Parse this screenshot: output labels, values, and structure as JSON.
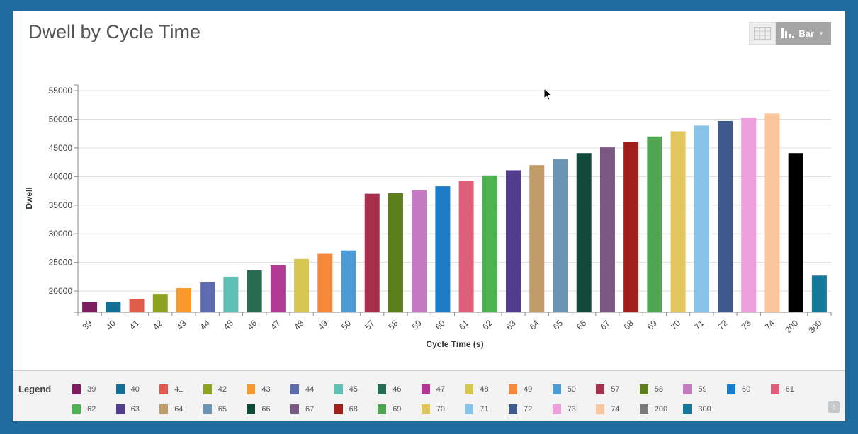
{
  "title": "Dwell by Cycle Time",
  "toolbar": {
    "view_label": "Bar"
  },
  "legend": {
    "label": "Legend"
  },
  "chart_data": {
    "type": "bar",
    "xlabel": "Cycle Time (s)",
    "ylabel": "Dwell",
    "ylim": [
      16300,
      56000
    ],
    "yticks": [
      20000,
      25000,
      30000,
      35000,
      40000,
      45000,
      50000,
      55000
    ],
    "yticks_labels": [
      "20000",
      "25000",
      "30000",
      "35000",
      "40000",
      "45000",
      "50000",
      "55000"
    ],
    "grid": true,
    "legend_position": "bottom",
    "categories": [
      "39",
      "40",
      "41",
      "42",
      "43",
      "44",
      "45",
      "46",
      "47",
      "48",
      "49",
      "50",
      "57",
      "58",
      "59",
      "60",
      "61",
      "62",
      "63",
      "64",
      "65",
      "66",
      "67",
      "68",
      "69",
      "70",
      "71",
      "72",
      "73",
      "74",
      "200",
      "300"
    ],
    "values": [
      18100,
      18100,
      18600,
      19500,
      20500,
      21500,
      22500,
      23600,
      24500,
      25600,
      26500,
      27100,
      37000,
      37100,
      37600,
      38300,
      39200,
      40200,
      41100,
      42000,
      43100,
      44100,
      45100,
      46100,
      47000,
      47900,
      48900,
      49700,
      50300,
      51000,
      44100,
      22700
    ],
    "colors": [
      "#7d1d5e",
      "#126f95",
      "#e05c4a",
      "#8da220",
      "#f79a2e",
      "#5f6bb0",
      "#5fc0b6",
      "#266b52",
      "#b23993",
      "#d5c751",
      "#f5883b",
      "#4b9bd6",
      "#a8304d",
      "#5c7e1b",
      "#c47bc1",
      "#1a7cc9",
      "#de5f7a",
      "#4eb251",
      "#523c8e",
      "#be9b67",
      "#6c94b5",
      "#124a39",
      "#7b5783",
      "#a01f19",
      "#4fa552",
      "#e0c65c",
      "#87c3e6",
      "#3f5b8e",
      "#eea0dc",
      "#fcc69c",
      "#000000",
      "#15789a"
    ],
    "legend_colors": [
      "#7d1d5e",
      "#126f95",
      "#e05c4a",
      "#8da220",
      "#f79a2e",
      "#5f6bb0",
      "#5fc0b6",
      "#266b52",
      "#b23993",
      "#d5c751",
      "#f5883b",
      "#4b9bd6",
      "#a8304d",
      "#5c7e1b",
      "#c47bc1",
      "#1a7cc9",
      "#de5f7a",
      "#4eb251",
      "#523c8e",
      "#be9b67",
      "#6c94b5",
      "#124a39",
      "#7b5783",
      "#a01f19",
      "#4fa552",
      "#e0c65c",
      "#87c3e6",
      "#3f5b8e",
      "#eea0dc",
      "#fcc69c",
      "#7a7a7a",
      "#15789a"
    ]
  }
}
